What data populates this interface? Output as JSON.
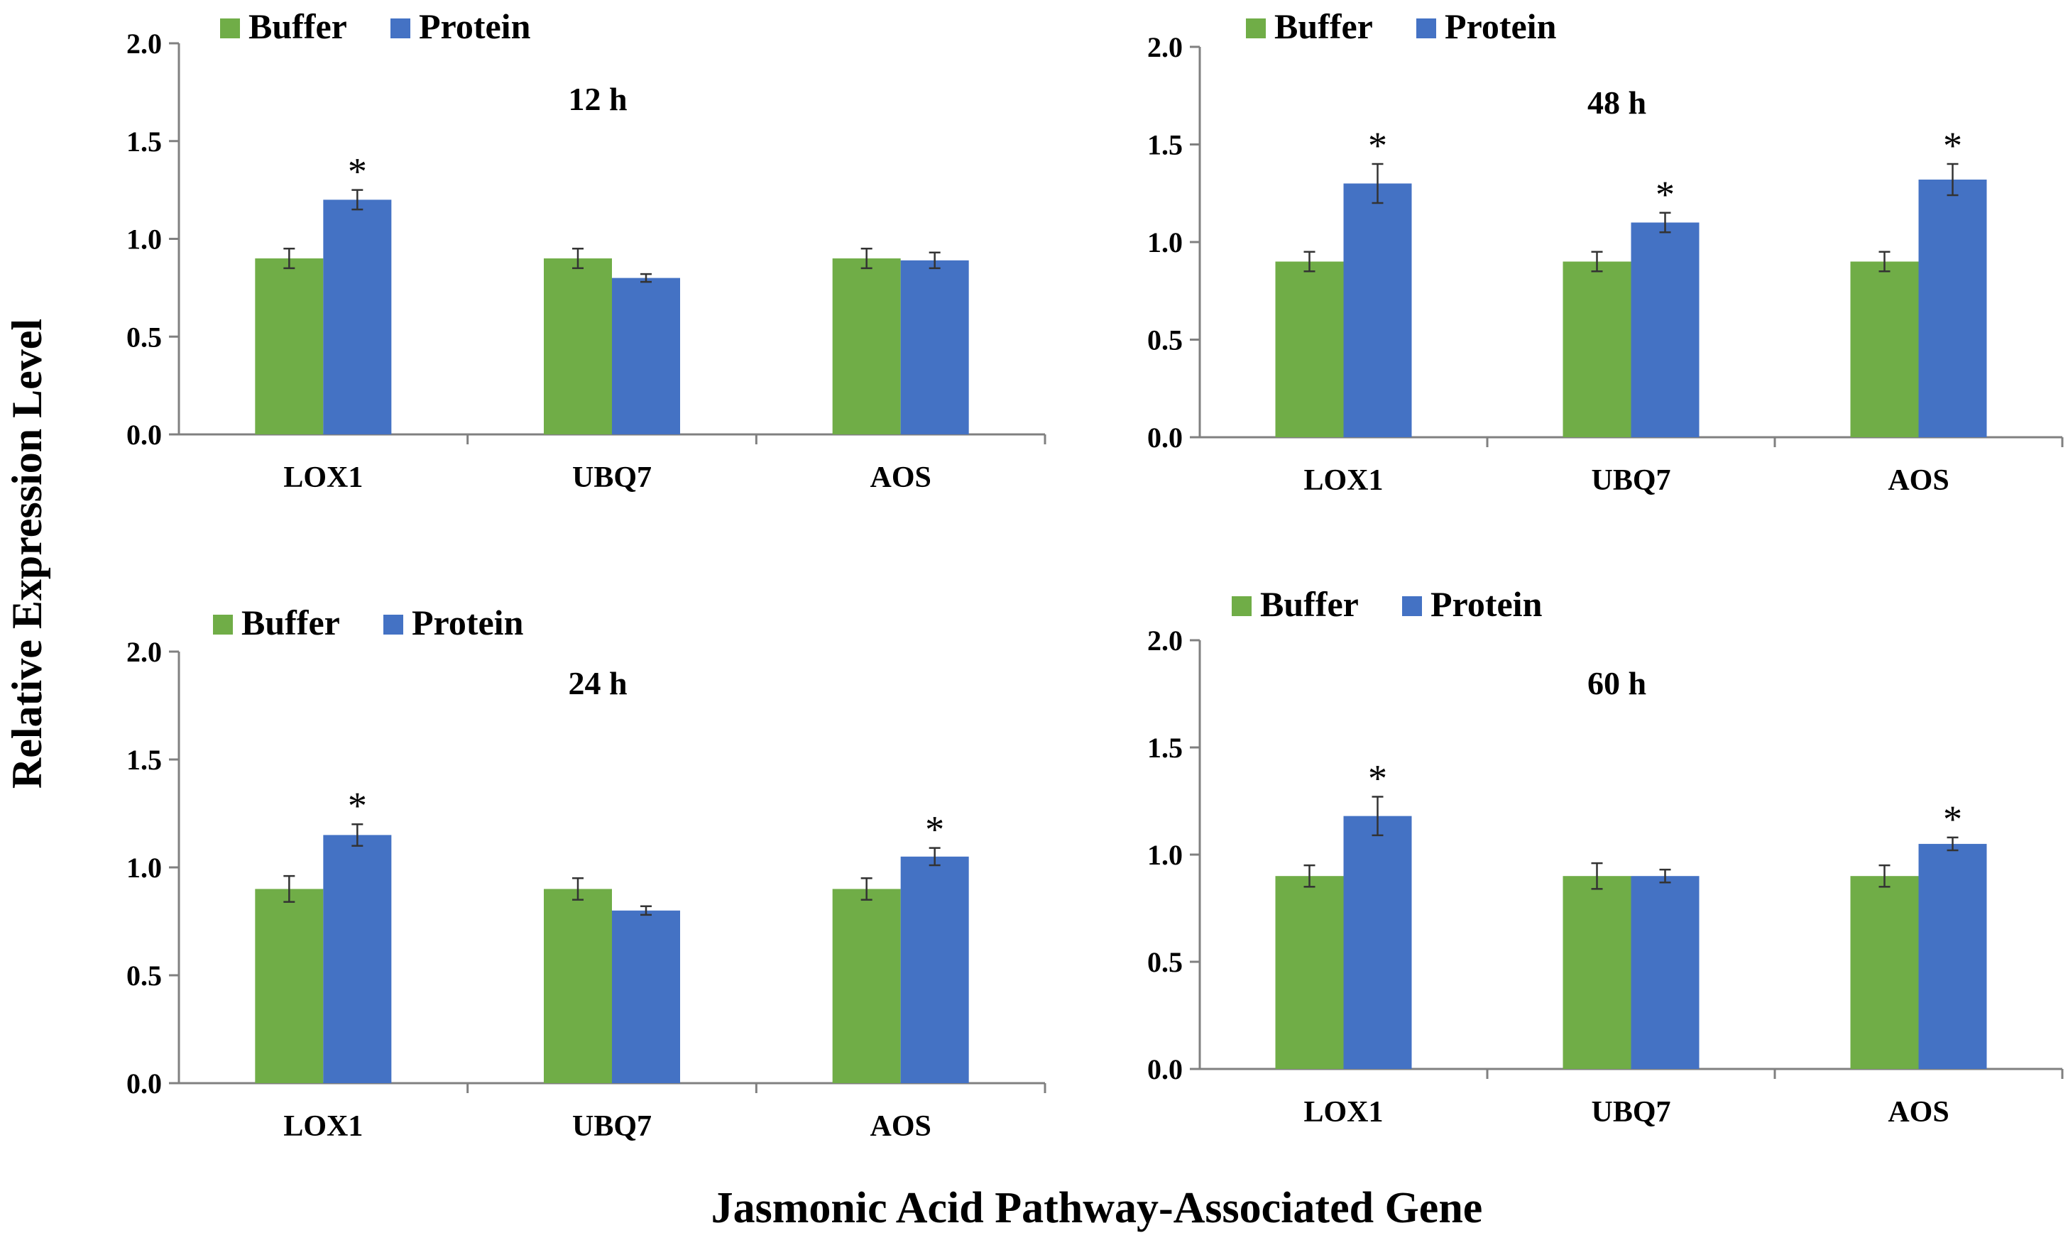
{
  "figure": {
    "ylabel": "Relative Expression Level",
    "xlabel": "Jasmonic Acid Pathway-Associated Gene"
  },
  "colors": {
    "buffer": "#70ad47",
    "protein": "#4472c4",
    "axis": "#808080",
    "text": "#000000"
  },
  "chart_data": [
    {
      "type": "bar",
      "title": "12 h",
      "categories": [
        "LOX1",
        "UBQ7",
        "AOS"
      ],
      "ylim": [
        0,
        2.0
      ],
      "yticks": [
        "0.0",
        "0.5",
        "1.0",
        "1.5",
        "2.0"
      ],
      "legend": "top-left",
      "series": [
        {
          "name": "Buffer",
          "values": [
            0.9,
            0.9,
            0.9
          ],
          "errors": [
            0.05,
            0.05,
            0.05
          ],
          "significant": [
            false,
            false,
            false
          ]
        },
        {
          "name": "Protein",
          "values": [
            1.2,
            0.8,
            0.89
          ],
          "errors": [
            0.05,
            0.02,
            0.04
          ],
          "significant": [
            true,
            false,
            false
          ]
        }
      ],
      "significance_mark": "*"
    },
    {
      "type": "bar",
      "title": "48 h",
      "categories": [
        "LOX1",
        "UBQ7",
        "AOS"
      ],
      "ylim": [
        0,
        2.0
      ],
      "yticks": [
        "0.0",
        "0.5",
        "1.0",
        "1.5",
        "2.0"
      ],
      "legend": "top-left",
      "series": [
        {
          "name": "Buffer",
          "values": [
            0.9,
            0.9,
            0.9
          ],
          "errors": [
            0.05,
            0.05,
            0.05
          ],
          "significant": [
            false,
            false,
            false
          ]
        },
        {
          "name": "Protein",
          "values": [
            1.3,
            1.1,
            1.32
          ],
          "errors": [
            0.1,
            0.05,
            0.08
          ],
          "significant": [
            true,
            true,
            true
          ]
        }
      ],
      "significance_mark": "*"
    },
    {
      "type": "bar",
      "title": "24 h",
      "categories": [
        "LOX1",
        "UBQ7",
        "AOS"
      ],
      "ylim": [
        0,
        2.0
      ],
      "yticks": [
        "0.0",
        "0.5",
        "1.0",
        "1.5",
        "2.0"
      ],
      "legend": "top-left",
      "series": [
        {
          "name": "Buffer",
          "values": [
            0.9,
            0.9,
            0.9
          ],
          "errors": [
            0.06,
            0.05,
            0.05
          ],
          "significant": [
            false,
            false,
            false
          ]
        },
        {
          "name": "Protein",
          "values": [
            1.15,
            0.8,
            1.05
          ],
          "errors": [
            0.05,
            0.02,
            0.04
          ],
          "significant": [
            true,
            false,
            true
          ]
        }
      ],
      "significance_mark": "*"
    },
    {
      "type": "bar",
      "title": "60 h",
      "categories": [
        "LOX1",
        "UBQ7",
        "AOS"
      ],
      "ylim": [
        0,
        2.0
      ],
      "yticks": [
        "0.0",
        "0.5",
        "1.0",
        "1.5",
        "2.0"
      ],
      "legend": "top-left",
      "series": [
        {
          "name": "Buffer",
          "values": [
            0.9,
            0.9,
            0.9
          ],
          "errors": [
            0.05,
            0.06,
            0.05
          ],
          "significant": [
            false,
            false,
            false
          ]
        },
        {
          "name": "Protein",
          "values": [
            1.18,
            0.9,
            1.05
          ],
          "errors": [
            0.09,
            0.03,
            0.03
          ],
          "significant": [
            true,
            false,
            true
          ]
        }
      ],
      "significance_mark": "*"
    }
  ]
}
